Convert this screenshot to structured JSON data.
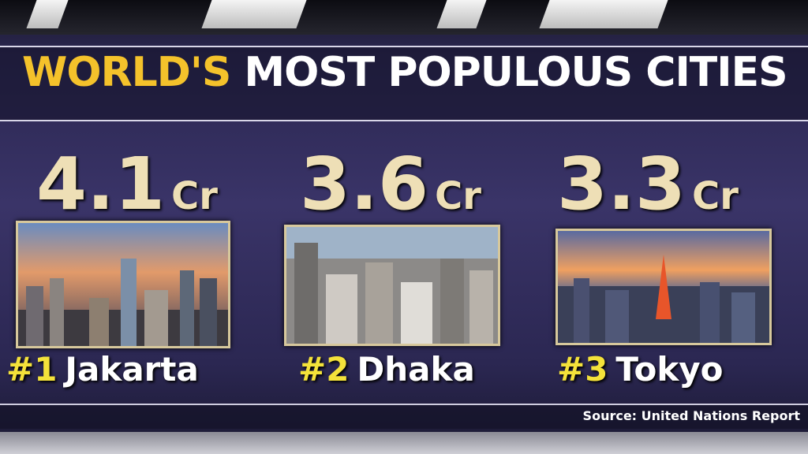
{
  "title": {
    "highlight": "WORLD'S",
    "rest": "MOST POPULOUS CITIES"
  },
  "unit": "Cr",
  "cities": [
    {
      "value": 4.1,
      "rank": "#1",
      "name": "Jakarta"
    },
    {
      "value": 3.6,
      "rank": "#2",
      "name": "Dhaka"
    },
    {
      "value": 3.3,
      "rank": "#3",
      "name": "Tokyo"
    }
  ],
  "source": "Source: United Nations Report"
}
